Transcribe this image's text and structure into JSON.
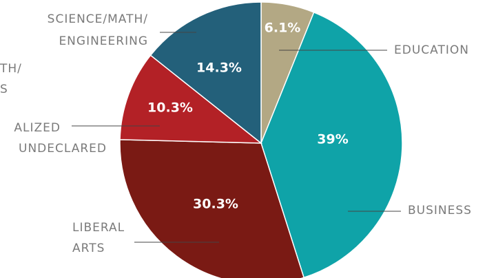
{
  "chart_data": {
    "type": "pie",
    "categories": [
      [
        "EDUCATION"
      ],
      [
        "BUSINESS"
      ],
      [
        "LIBERAL",
        "ARTS"
      ],
      [
        "ALIZED",
        "UNDECLARED"
      ],
      [
        "SCIENCE/MATH/",
        "ENGINEERING"
      ]
    ],
    "values": [
      6.1,
      39,
      30.3,
      10.3,
      14.3
    ],
    "value_labels": [
      "6.1%",
      "39%",
      "30.3%",
      "10.3%",
      "14.3%"
    ],
    "colors": [
      "#b3a884",
      "#0fa3a8",
      "#7a1a14",
      "#b32126",
      "#23607a"
    ],
    "annotations": [
      "TH/",
      "S"
    ]
  }
}
